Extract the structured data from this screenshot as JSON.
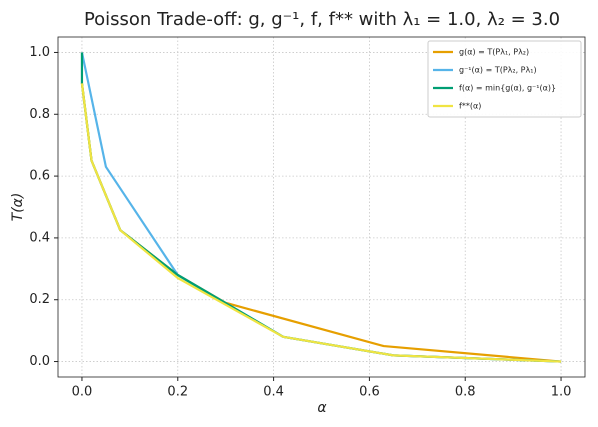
{
  "chart_data": {
    "type": "line",
    "title": "Poisson Trade-off: g, g⁻¹, f, f** with λ₁ = 1.0, λ₂ = 3.0",
    "x_label": "α",
    "y_label": "T(α)",
    "xlim": [
      -0.05,
      1.05
    ],
    "ylim": [
      -0.05,
      1.05
    ],
    "xticks": [
      {
        "value": 0,
        "label": "0.0"
      },
      0.2,
      0.4,
      0.6,
      0.8,
      {
        "value": 1,
        "label": "1.0"
      }
    ],
    "yticks": [
      {
        "value": 0,
        "label": "0.0"
      },
      0.2,
      0.4,
      0.6,
      0.8,
      {
        "value": 1,
        "label": "1.0"
      }
    ],
    "grid": true,
    "legend": "upper right",
    "series": [
      {
        "name": "g(α) = T(Pλ₁, Pλ₂)",
        "color": "#E69F00",
        "x": [
          0,
          0.02,
          0.08,
          0.2,
          0.3,
          0.63,
          1
        ],
        "values": [
          0.9,
          0.65,
          0.425,
          0.28,
          0.19,
          0.05,
          0
        ]
      },
      {
        "name": "g⁻¹(α) = T(Pλ₂, Pλ₁)",
        "color": "#56B4E9",
        "x": [
          0,
          0.05,
          0.2,
          0.42,
          0.65,
          1
        ],
        "values": [
          1,
          0.63,
          0.28,
          0.08,
          0.02,
          0
        ]
      },
      {
        "name": "f(α) = min{g(α), g⁻¹(α)}",
        "color": "#009E73",
        "x": [
          0,
          0,
          0.02,
          0.08,
          0.2,
          0.42,
          0.65,
          1
        ],
        "values": [
          1,
          0.9,
          0.65,
          0.425,
          0.28,
          0.08,
          0.02,
          0
        ]
      },
      {
        "name": "f**(α)",
        "color": "#F0E442",
        "x": [
          0,
          0.02,
          0.08,
          0.2,
          0.42,
          0.65,
          1
        ],
        "values": [
          0.9,
          0.65,
          0.425,
          0.27,
          0.08,
          0.02,
          0
        ]
      }
    ]
  }
}
